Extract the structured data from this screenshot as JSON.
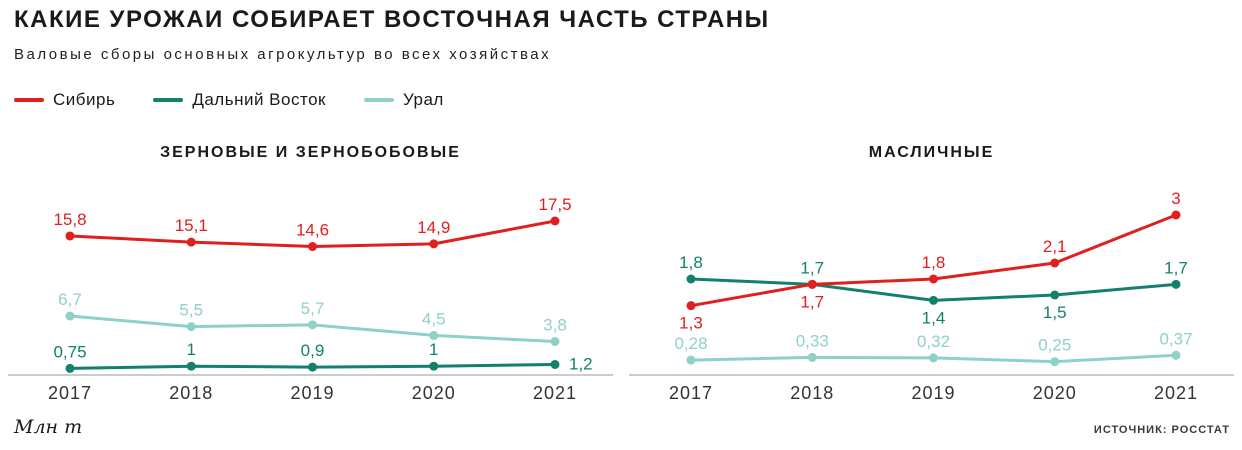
{
  "page": {
    "title": "КАКИЕ УРОЖАИ СОБИРАЕТ ВОСТОЧНАЯ ЧАСТЬ СТРАНЫ",
    "subtitle": "Валовые сборы основных агрокультур во всех хозяйствах",
    "unit_label": "Млн т",
    "source": "ИСТОЧНИК: РОССТАТ"
  },
  "colors": {
    "siberia": "#e01f1f",
    "far_east": "#12806d",
    "ural": "#8ed1c9",
    "axis": "#cccccc",
    "text": "#1a1a1a"
  },
  "legend": [
    {
      "label": "Сибирь",
      "color_key": "siberia"
    },
    {
      "label": "Дальний Восток",
      "color_key": "far_east"
    },
    {
      "label": "Урал",
      "color_key": "ural"
    }
  ],
  "chart_data": [
    {
      "type": "line",
      "title": "ЗЕРНОВЫЕ И ЗЕРНОБОБОВЫЕ",
      "categories": [
        "2017",
        "2018",
        "2019",
        "2020",
        "2021"
      ],
      "ylim": [
        0,
        20
      ],
      "grid": false,
      "legend_position": "top-left",
      "series": [
        {
          "name": "Сибирь",
          "color_key": "siberia",
          "values": [
            15.8,
            15.1,
            14.6,
            14.9,
            17.5
          ],
          "labels": [
            "15,8",
            "15,1",
            "14,6",
            "14,9",
            "17,5"
          ],
          "label_pos": [
            "above",
            "above",
            "above",
            "above",
            "above"
          ]
        },
        {
          "name": "Дальний Восток",
          "color_key": "far_east",
          "values": [
            0.75,
            1,
            0.9,
            1,
            1.2
          ],
          "labels": [
            "0,75",
            "1",
            "0,9",
            "1",
            "1,2"
          ],
          "label_pos": [
            "above",
            "above",
            "above",
            "above",
            "right"
          ]
        },
        {
          "name": "Урал",
          "color_key": "ural",
          "values": [
            6.7,
            5.5,
            5.7,
            4.5,
            3.8
          ],
          "labels": [
            "6,7",
            "5,5",
            "5,7",
            "4,5",
            "3,8"
          ],
          "label_pos": [
            "above",
            "above",
            "above",
            "above",
            "above"
          ]
        }
      ]
    },
    {
      "type": "line",
      "title": "МАСЛИЧНЫЕ",
      "categories": [
        "2017",
        "2018",
        "2019",
        "2020",
        "2021"
      ],
      "ylim": [
        0,
        3.3
      ],
      "grid": false,
      "legend_position": "top-left",
      "series": [
        {
          "name": "Сибирь",
          "color_key": "siberia",
          "values": [
            1.3,
            1.7,
            1.8,
            2.1,
            3
          ],
          "labels": [
            "1,3",
            "1,7",
            "1,8",
            "2,1",
            "3"
          ],
          "label_pos": [
            "below",
            "below",
            "above",
            "above",
            "above"
          ]
        },
        {
          "name": "Дальний Восток",
          "color_key": "far_east",
          "values": [
            1.8,
            1.7,
            1.4,
            1.5,
            1.7
          ],
          "labels": [
            "1,8",
            "1,7",
            "1,4",
            "1,5",
            "1,7"
          ],
          "label_pos": [
            "above",
            "above",
            "below",
            "below",
            "above"
          ]
        },
        {
          "name": "Урал",
          "color_key": "ural",
          "values": [
            0.28,
            0.33,
            0.32,
            0.25,
            0.37
          ],
          "labels": [
            "0,28",
            "0,33",
            "0,32",
            "0,25",
            "0,37"
          ],
          "label_pos": [
            "above",
            "above",
            "above",
            "above",
            "above"
          ]
        }
      ]
    }
  ]
}
